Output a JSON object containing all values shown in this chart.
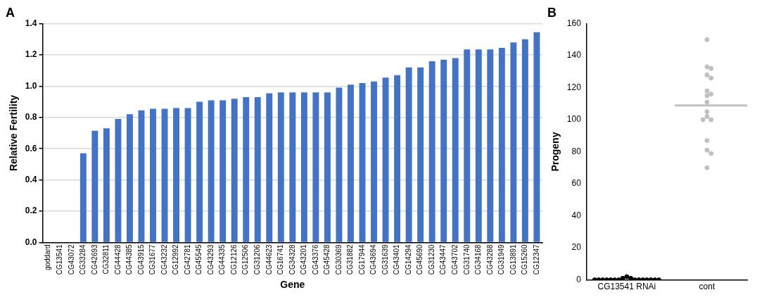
{
  "chart_data": [
    {
      "type": "bar",
      "title": "A",
      "xlabel": "Gene",
      "ylabel": "Relative Fertility",
      "categories": [
        "goddard",
        "CG13541",
        "CG43072",
        "CG33284",
        "CG42693",
        "CG32811",
        "CG44428",
        "CG44385",
        "CG43915",
        "CG31677",
        "CG43232",
        "CG12992",
        "CG42781",
        "CG45545",
        "CG43293",
        "CG44335",
        "CG12126",
        "CG12506",
        "CG31206",
        "CG44623",
        "CG16741",
        "CG34328",
        "CG43201",
        "CG43376",
        "CG45428",
        "CG30369",
        "CG31882",
        "CG17944",
        "CG43694",
        "CG31639",
        "CG43401",
        "CG14294",
        "CG45690",
        "CG31230",
        "CG43447",
        "CG43702",
        "CG31740",
        "CG34168",
        "CG43288",
        "CG31949",
        "CG13891",
        "CG15260",
        "CG12347"
      ],
      "values": [
        0,
        0,
        0,
        0.57,
        0.715,
        0.73,
        0.79,
        0.82,
        0.845,
        0.855,
        0.855,
        0.86,
        0.86,
        0.9,
        0.91,
        0.91,
        0.92,
        0.93,
        0.93,
        0.955,
        0.96,
        0.96,
        0.96,
        0.96,
        0.96,
        0.99,
        1.01,
        1.02,
        1.03,
        1.055,
        1.07,
        1.12,
        1.12,
        1.16,
        1.17,
        1.18,
        1.235,
        1.235,
        1.235,
        1.245,
        1.28,
        1.3,
        1.345
      ],
      "color": "#4472c4",
      "ylim": [
        0,
        1.4
      ],
      "yticks": [
        {
          "value": 0,
          "label": "0.0"
        },
        {
          "value": 0.2,
          "label": "0.2"
        },
        {
          "value": 0.4,
          "label": "0.4"
        },
        {
          "value": 0.6,
          "label": "0.6"
        },
        {
          "value": 0.8,
          "label": "0.8"
        },
        {
          "value": 1,
          "label": "1.0"
        },
        {
          "value": 1.2,
          "label": "1.2"
        },
        {
          "value": 1.4,
          "label": "1.4"
        }
      ],
      "grid": "y"
    },
    {
      "type": "scatter",
      "title": "B",
      "ylabel": "Progeny",
      "marker": "circle",
      "categories": [
        "CG13541 RNAi",
        "cont"
      ],
      "series": [
        {
          "color": "#000000",
          "x": [
            "CG13541 RNAi",
            "CG13541 RNAi",
            "CG13541 RNAi",
            "CG13541 RNAi",
            "CG13541 RNAi",
            "CG13541 RNAi",
            "CG13541 RNAi",
            "CG13541 RNAi",
            "CG13541 RNAi",
            "CG13541 RNAi",
            "CG13541 RNAi",
            "CG13541 RNAi",
            "CG13541 RNAi",
            "CG13541 RNAi",
            "CG13541 RNAi",
            "CG13541 RNAi",
            "CG13541 RNAi"
          ],
          "values": [
            2,
            1,
            1,
            0,
            0,
            0,
            0,
            0,
            0,
            0,
            0,
            0,
            0,
            0,
            0,
            0,
            0
          ]
        },
        {
          "color": "#c0c0c0",
          "x": [
            "cont",
            "cont",
            "cont",
            "cont",
            "cont",
            "cont",
            "cont",
            "cont",
            "cont",
            "cont",
            "cont",
            "cont",
            "cont",
            "cont",
            "cont",
            "cont",
            "cont"
          ],
          "values": [
            150,
            133,
            132,
            128,
            126,
            118,
            116,
            115,
            111,
            105,
            102,
            100,
            100,
            87,
            81,
            79,
            70
          ]
        }
      ],
      "ref_lines": [
        {
          "axis": "y",
          "value": 109,
          "color": "#c0c0c0"
        }
      ],
      "ylim": [
        0,
        160
      ],
      "yticks": [
        0,
        20,
        40,
        60,
        80,
        100,
        120,
        140,
        160
      ]
    }
  ]
}
